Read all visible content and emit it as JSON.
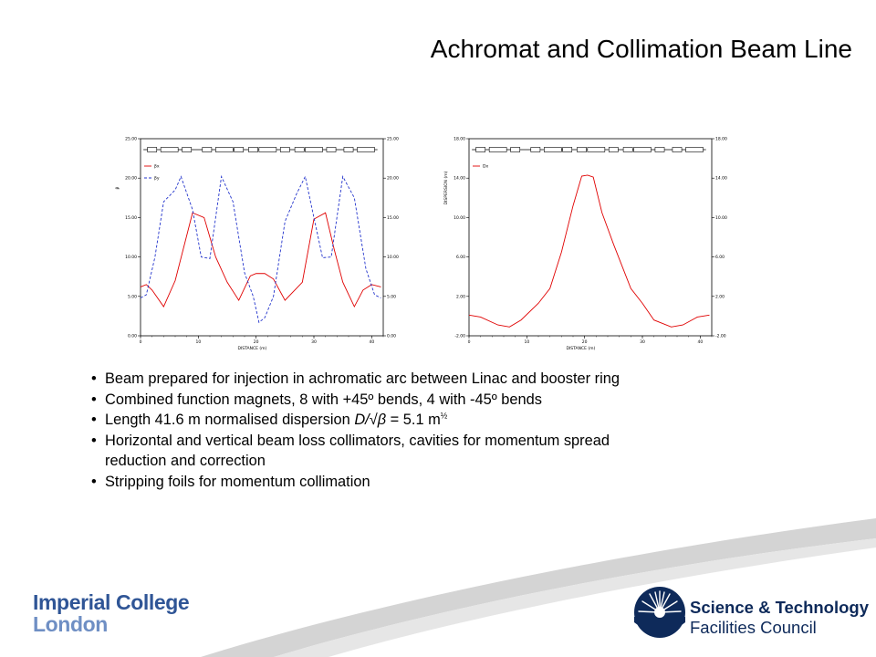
{
  "title": "Achromat and Collimation Beam Line",
  "bullets": {
    "b1": "Beam prepared for injection in achromatic arc between Linac and booster ring",
    "b2": "Combined function magnets, 8 with +45º bends, 4 with -45º bends",
    "b3_pre": "Length 41.6 m normalised dispersion ",
    "b3_formula": "D/√β",
    "b3_mid": " = 5.1 m",
    "b3_sup": "½",
    "b4_line1": "Horizontal and vertical beam loss collimators, cavities for momentum spread",
    "b4_line2": "reduction and correction",
    "b5": "Stripping foils for momentum collimation"
  },
  "logos": {
    "imperial_line1": "Imperial College",
    "imperial_line2": "London",
    "stfc_line1": "Science & Technology",
    "stfc_line2": "Facilities Council"
  },
  "colors": {
    "red_series": "#e00000",
    "blue_series": "#2233cc",
    "imperial_blue": "#2f5596",
    "stfc_navy": "#0e2a5a",
    "swoosh_grey": "#c6c6c6"
  },
  "chart_data": [
    {
      "type": "line",
      "xlabel": "DISTANCE (m)",
      "ylabel": "β",
      "xlim": [
        0,
        42
      ],
      "ylim": [
        0,
        25
      ],
      "xticks": [
        "0",
        "10",
        "20",
        "30",
        "40"
      ],
      "yticks": [
        "0.00",
        "5.00",
        "10.00",
        "15.00",
        "20.00",
        "25.00"
      ],
      "yticks_right": [
        "0.00",
        "5.00",
        "10.00",
        "15.00",
        "20.00",
        "25.00"
      ],
      "legend": [
        "βx",
        "βy"
      ],
      "series": [
        {
          "name": "βx",
          "color": "#e00000",
          "style": "solid",
          "x": [
            0,
            1,
            2,
            4,
            6,
            9,
            11,
            13,
            15,
            17,
            19,
            20,
            21.5,
            23,
            25,
            28,
            30,
            32,
            33.5,
            35,
            37,
            38.5,
            40,
            41.6
          ],
          "y": [
            6.2,
            6.5,
            5.8,
            3.7,
            7,
            15.6,
            15,
            10,
            6.8,
            4.5,
            7.6,
            7.9,
            7.9,
            7.2,
            4.5,
            6.8,
            14.8,
            15.6,
            11,
            6.8,
            3.7,
            5.8,
            6.5,
            6.2
          ]
        },
        {
          "name": "βy",
          "color": "#2233cc",
          "style": "dashed",
          "x": [
            0,
            1,
            2.5,
            4,
            6,
            7,
            9,
            10.5,
            12,
            14,
            16,
            18,
            19.5,
            20.5,
            21.5,
            23,
            25,
            27,
            28.5,
            30,
            31.5,
            33,
            35,
            37,
            39,
            40.5,
            41.6
          ],
          "y": [
            4.8,
            5.2,
            10,
            17,
            18.5,
            20.2,
            16,
            10,
            9.8,
            20.2,
            17,
            8,
            5,
            1.7,
            2.3,
            5,
            14.5,
            18,
            20.2,
            15,
            9.9,
            10,
            20.2,
            17.5,
            8.5,
            5.2,
            4.8
          ]
        }
      ]
    },
    {
      "type": "line",
      "xlabel": "DISTANCE (m)",
      "ylabel": "DISPERSION (m)",
      "xlim": [
        0,
        42
      ],
      "ylim": [
        -2,
        18
      ],
      "xticks": [
        "0",
        "10",
        "20",
        "30",
        "40"
      ],
      "yticks": [
        "-2.00",
        "2.00",
        "6.00",
        "10.00",
        "14.00",
        "18.00"
      ],
      "yticks_right": [
        "-2.00",
        "2.00",
        "6.00",
        "10.00",
        "14.00",
        "18.00"
      ],
      "legend": [
        "Dx"
      ],
      "series": [
        {
          "name": "Dx",
          "color": "#e00000",
          "style": "solid",
          "x": [
            0,
            2,
            5,
            7,
            9,
            12,
            14,
            16,
            18,
            19.5,
            20.5,
            21.5,
            23,
            25,
            28,
            30,
            32,
            35,
            37,
            39.5,
            41.6
          ],
          "y": [
            0.1,
            -0.1,
            -0.9,
            -1.1,
            -0.4,
            1.3,
            2.8,
            6.5,
            11.2,
            14.2,
            14.3,
            14.1,
            10.5,
            7.3,
            2.8,
            1.3,
            -0.4,
            -1.1,
            -0.9,
            -0.1,
            0.1
          ]
        }
      ]
    }
  ]
}
